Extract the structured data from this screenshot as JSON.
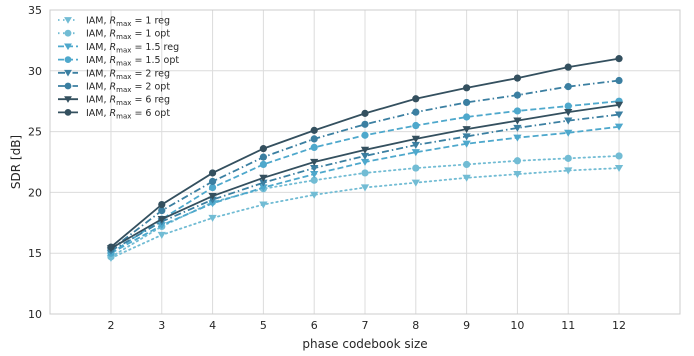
{
  "chart_data": {
    "type": "line",
    "xlabel": "phase codebook size",
    "ylabel": "SDR [dB]",
    "x": [
      2,
      3,
      4,
      5,
      6,
      7,
      8,
      9,
      10,
      11,
      12
    ],
    "xlim": [
      0.8,
      13.2
    ],
    "ylim": [
      10,
      35
    ],
    "yticks": [
      10,
      15,
      20,
      25,
      30,
      35
    ],
    "grid": true,
    "legend_position": "top-left",
    "series": [
      {
        "name": "IAM, R_max = 1 reg",
        "legend_parts": [
          "IAM, ",
          "R",
          "max",
          " = 1 reg"
        ],
        "color": "#72bcd4",
        "dash": "dotted",
        "marker": "triangle-down",
        "values": [
          14.6,
          16.5,
          17.9,
          19.0,
          19.8,
          20.4,
          20.8,
          21.2,
          21.5,
          21.8,
          22.0
        ]
      },
      {
        "name": "IAM, R_max = 1 opt",
        "legend_parts": [
          "IAM, ",
          "R",
          "max",
          " = 1 opt"
        ],
        "color": "#72bcd4",
        "dash": "dotted",
        "marker": "circle",
        "values": [
          14.7,
          17.2,
          19.2,
          20.3,
          21.0,
          21.6,
          22.0,
          22.3,
          22.6,
          22.8,
          23.0
        ]
      },
      {
        "name": "IAM, R_max = 1.5 reg",
        "legend_parts": [
          "IAM, ",
          "R",
          "max",
          " = 1.5 reg"
        ],
        "color": "#4ea8cc",
        "dash": "dashed",
        "marker": "triangle-down",
        "values": [
          15.0,
          17.3,
          19.1,
          20.4,
          21.5,
          22.5,
          23.3,
          24.0,
          24.5,
          24.9,
          25.4
        ]
      },
      {
        "name": "IAM, R_max = 1.5 opt",
        "legend_parts": [
          "IAM, ",
          "R",
          "max",
          " = 1.5 opt"
        ],
        "color": "#4ea8cc",
        "dash": "dashed",
        "marker": "circle",
        "values": [
          15.0,
          17.8,
          20.4,
          22.3,
          23.7,
          24.7,
          25.5,
          26.2,
          26.7,
          27.1,
          27.5
        ]
      },
      {
        "name": "IAM, R_max = 2 reg",
        "legend_parts": [
          "IAM, ",
          "R",
          "max",
          " = 2 reg"
        ],
        "color": "#3b7fa1",
        "dash": "dashdot",
        "marker": "triangle-down",
        "values": [
          15.2,
          17.6,
          19.4,
          20.8,
          22.0,
          23.0,
          23.9,
          24.6,
          25.3,
          25.9,
          26.4
        ]
      },
      {
        "name": "IAM, R_max = 2 opt",
        "legend_parts": [
          "IAM, ",
          "R",
          "max",
          " = 2 opt"
        ],
        "color": "#3b7fa1",
        "dash": "dashdot",
        "marker": "circle",
        "values": [
          15.3,
          18.5,
          20.9,
          22.9,
          24.4,
          25.6,
          26.6,
          27.4,
          28.0,
          28.7,
          29.2
        ]
      },
      {
        "name": "IAM, R_max = 6 reg",
        "legend_parts": [
          "IAM, ",
          "R",
          "max",
          " = 6 reg"
        ],
        "color": "#34505f",
        "dash": "solid",
        "marker": "triangle-down",
        "values": [
          15.4,
          17.8,
          19.7,
          21.2,
          22.5,
          23.5,
          24.4,
          25.2,
          25.9,
          26.6,
          27.2
        ]
      },
      {
        "name": "IAM, R_max = 6 opt",
        "legend_parts": [
          "IAM, ",
          "R",
          "max",
          " = 6 opt"
        ],
        "color": "#34505f",
        "dash": "solid",
        "marker": "circle",
        "values": [
          15.5,
          19.0,
          21.6,
          23.6,
          25.1,
          26.5,
          27.7,
          28.6,
          29.4,
          30.3,
          31.0
        ]
      }
    ]
  }
}
